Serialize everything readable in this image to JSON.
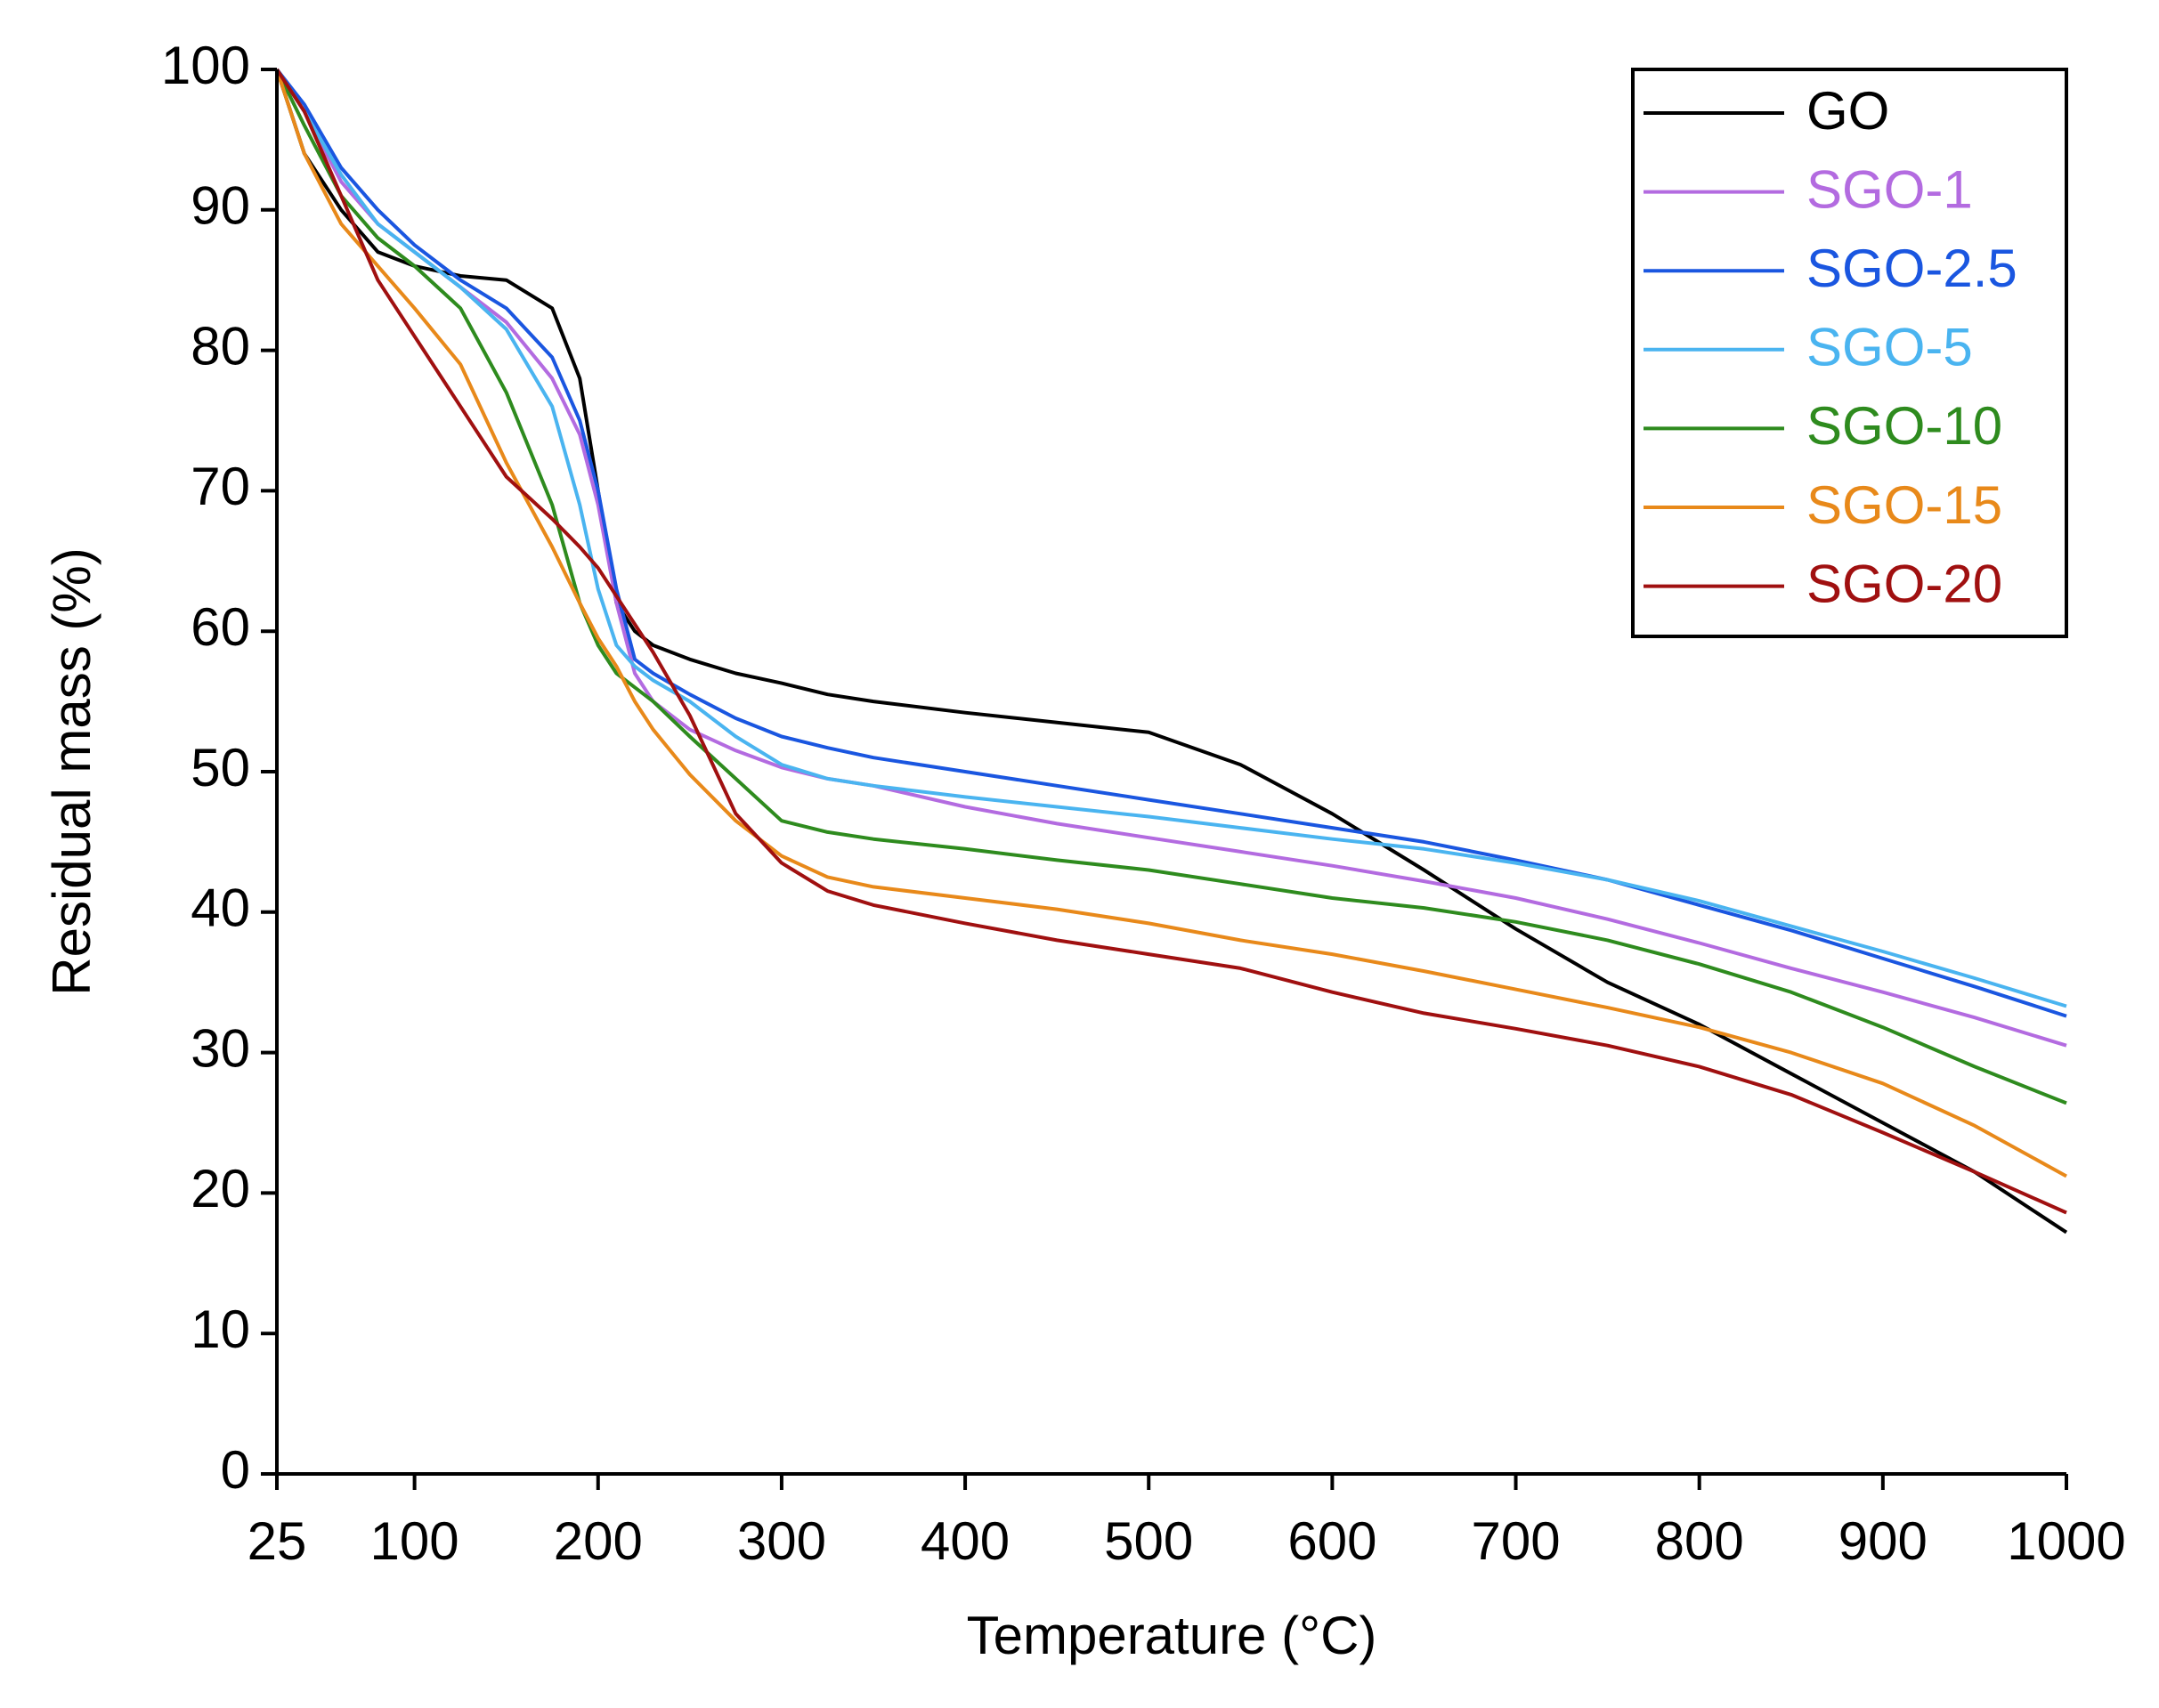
{
  "chart_data": {
    "type": "line",
    "xlabel": "Temperature (°C)",
    "ylabel": "Residual mass (%)",
    "x": [
      25,
      40,
      60,
      80,
      100,
      125,
      150,
      175,
      190,
      200,
      210,
      220,
      230,
      250,
      275,
      300,
      325,
      350,
      400,
      450,
      500,
      550,
      600,
      650,
      700,
      750,
      800,
      850,
      900,
      950,
      1000
    ],
    "series": [
      {
        "name": "GO",
        "color": "#000000",
        "values": [
          100,
          94,
          90,
          87,
          86,
          85.3,
          85,
          83,
          78,
          70,
          62,
          60,
          59,
          58,
          57,
          56.3,
          55.5,
          55,
          54.2,
          53.5,
          52.8,
          50.5,
          47,
          43,
          38.8,
          35,
          32,
          28.5,
          25,
          21.5,
          17.2
        ]
      },
      {
        "name": "SGO-1",
        "color": "#b36be0",
        "values": [
          100,
          97,
          92,
          89,
          87,
          84.5,
          82,
          78,
          74,
          69,
          62,
          57,
          55,
          53,
          51.5,
          50.3,
          49.5,
          49,
          47.5,
          46.3,
          45.3,
          44.3,
          43.3,
          42.2,
          41,
          39.5,
          37.8,
          36,
          34.3,
          32.5,
          30.5
        ]
      },
      {
        "name": "SGO-2.5",
        "color": "#1a56e0",
        "values": [
          100,
          97.5,
          93,
          90,
          87.5,
          85,
          83,
          79.5,
          75,
          70,
          63,
          58,
          57,
          55.5,
          53.8,
          52.5,
          51.7,
          51,
          50,
          49,
          48,
          47,
          46,
          45,
          43.7,
          42.3,
          40.5,
          38.7,
          36.7,
          34.7,
          32.6
        ]
      },
      {
        "name": "SGO-5",
        "color": "#4ab4f0",
        "values": [
          100,
          97,
          92.5,
          89,
          87,
          84.5,
          81.5,
          76,
          69,
          63,
          59,
          57.5,
          56.5,
          55,
          52.5,
          50.5,
          49.5,
          49,
          48.2,
          47.5,
          46.8,
          46,
          45.2,
          44.5,
          43.5,
          42.3,
          40.8,
          39,
          37.2,
          35.3,
          33.3
        ]
      },
      {
        "name": "SGO-10",
        "color": "#2e8b1e",
        "values": [
          100,
          96,
          91,
          88,
          86,
          83,
          77,
          69,
          62,
          59,
          57,
          56,
          55,
          52.5,
          49.5,
          46.5,
          45.7,
          45.2,
          44.5,
          43.7,
          43,
          42,
          41,
          40.3,
          39.3,
          38,
          36.3,
          34.3,
          31.8,
          29,
          26.4
        ]
      },
      {
        "name": "SGO-15",
        "color": "#e8891a",
        "values": [
          100,
          94,
          89,
          86,
          83,
          79,
          72,
          66,
          62,
          59.5,
          57.5,
          55,
          53,
          49.8,
          46.5,
          44,
          42.5,
          41.8,
          41,
          40.2,
          39.2,
          38,
          37,
          35.8,
          34.5,
          33.2,
          31.8,
          30,
          27.8,
          24.8,
          21.2
        ]
      },
      {
        "name": "SGO-20",
        "color": "#a01010",
        "values": [
          100,
          97,
          91,
          85,
          81,
          76,
          71,
          68,
          66,
          64.5,
          62.5,
          60.5,
          58.5,
          54,
          47,
          43.5,
          41.5,
          40.5,
          39.2,
          38,
          37,
          36,
          34.3,
          32.8,
          31.7,
          30.5,
          29,
          27,
          24.3,
          21.5,
          18.6
        ]
      }
    ],
    "xlim": [
      25,
      1000
    ],
    "xticks": [
      25,
      100,
      200,
      300,
      400,
      500,
      600,
      700,
      800,
      900,
      1000
    ],
    "ylim": [
      0,
      100
    ],
    "yticks": [
      0,
      10,
      20,
      30,
      40,
      50,
      60,
      70,
      80,
      90,
      100
    ],
    "legend": "upper right",
    "grid": false
  }
}
